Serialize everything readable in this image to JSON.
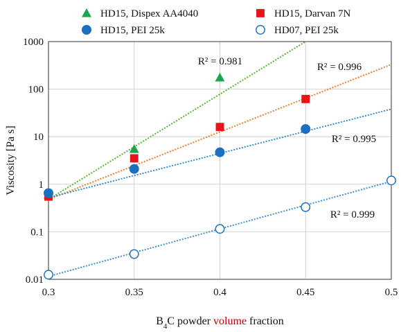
{
  "chart_data": {
    "type": "scatter",
    "title": "",
    "xlabel": {
      "parts": [
        {
          "text": "B",
          "style": "normal"
        },
        {
          "text": "4",
          "style": "sub"
        },
        {
          "text": "C powder ",
          "style": "normal"
        },
        {
          "text": "volume",
          "style": "red"
        },
        {
          "text": " fraction",
          "style": "normal"
        }
      ]
    },
    "ylabel": "Viscosity [Pa s]",
    "xlim": [
      0.3,
      0.5
    ],
    "ylim": [
      0.01,
      1000
    ],
    "yscale": "log",
    "grid": true,
    "legend_position": "top",
    "xticks": [
      {
        "value": 0.3,
        "label": "0.3"
      },
      {
        "value": 0.35,
        "label": "0.35"
      },
      {
        "value": 0.4,
        "label": "0.4"
      },
      {
        "value": 0.45,
        "label": "0.45"
      },
      {
        "value": 0.5,
        "label": "0.5"
      }
    ],
    "yticks": [
      {
        "value": 0.01,
        "label": "0.01"
      },
      {
        "value": 0.1,
        "label": "0.1"
      },
      {
        "value": 1,
        "label": "1"
      },
      {
        "value": 10,
        "label": "10"
      },
      {
        "value": 100,
        "label": "100"
      },
      {
        "value": 1000,
        "label": "1000"
      }
    ],
    "series": [
      {
        "name": "HD15, Dispex AA4040",
        "marker": "triangle",
        "color": "#1aa64a",
        "trend_color": "#5ab432",
        "x": [
          0.3,
          0.35,
          0.4
        ],
        "y": [
          0.6,
          5.5,
          175
        ],
        "trend": {
          "x": [
            0.3,
            0.45
          ],
          "y": [
            0.48,
            1000
          ]
        },
        "r2": "R² = 0.981"
      },
      {
        "name": "HD15, Darvan 7N",
        "marker": "square",
        "color": "#e8141a",
        "trend_color": "#ee7c2e",
        "x": [
          0.3,
          0.35,
          0.4,
          0.45
        ],
        "y": [
          0.55,
          3.5,
          16,
          62
        ],
        "trend": {
          "x": [
            0.3,
            0.5
          ],
          "y": [
            0.48,
            330
          ]
        },
        "r2": "R² = 0.996"
      },
      {
        "name": "HD15, PEI 25k",
        "marker": "circle",
        "color": "#1a6fbf",
        "trend_color": "#3f8fd4",
        "x": [
          0.3,
          0.35,
          0.4,
          0.45
        ],
        "y": [
          0.65,
          2.1,
          4.7,
          14.5
        ],
        "trend": {
          "x": [
            0.3,
            0.5
          ],
          "y": [
            0.52,
            38
          ]
        },
        "r2": "R² = 0.995"
      },
      {
        "name": "HD07, PEI 25k",
        "marker": "circle-open",
        "color": "#1a6fbf",
        "trend_color": "#3f8fd4",
        "x": [
          0.3,
          0.35,
          0.4,
          0.45,
          0.5
        ],
        "y": [
          0.0125,
          0.034,
          0.115,
          0.33,
          1.2
        ],
        "trend": {
          "x": [
            0.3,
            0.5
          ],
          "y": [
            0.0115,
            1.15
          ]
        },
        "r2": "R² = 0.999"
      }
    ]
  }
}
